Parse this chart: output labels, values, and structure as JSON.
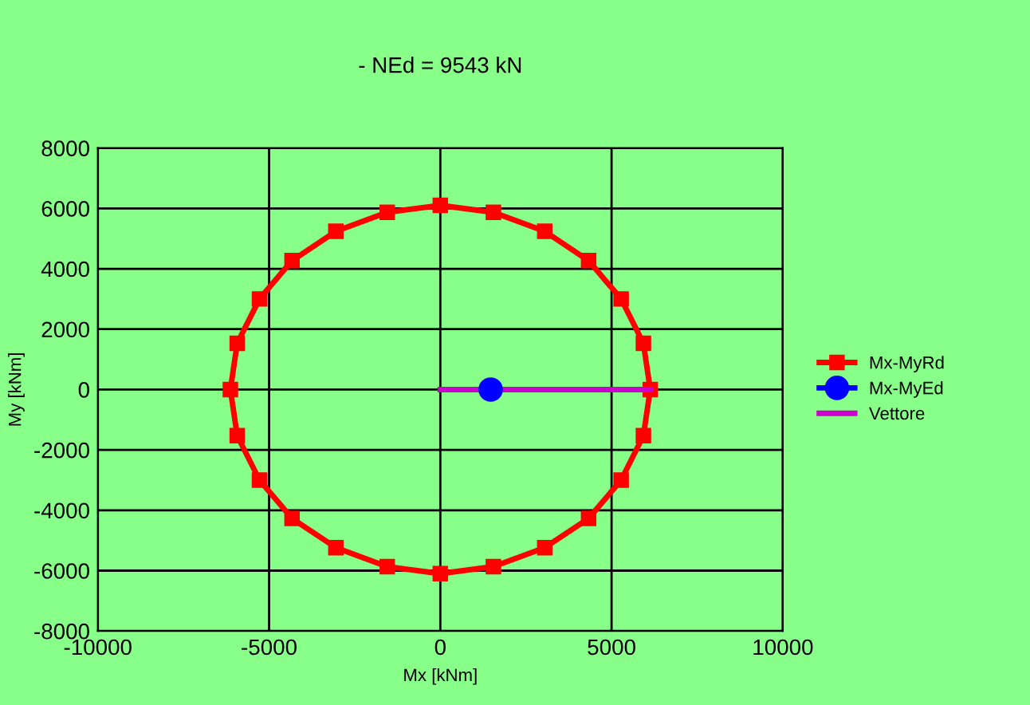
{
  "chart_data": {
    "type": "line",
    "title": "- NEd = 9543 kN",
    "xlabel": "Mx [kNm]",
    "ylabel": "My [kNm]",
    "xlim": [
      -10000,
      10000
    ],
    "xticks": [
      -10000,
      -5000,
      0,
      5000,
      10000
    ],
    "ylim": [
      -8000,
      8000
    ],
    "yticks": [
      -8000,
      -6000,
      -4000,
      -2000,
      0,
      2000,
      4000,
      6000,
      8000
    ],
    "grid": true,
    "legend": "right",
    "line_style": "solid",
    "series": [
      {
        "name": "Mx-MyRd",
        "color": "#ff0000",
        "marker": "square",
        "x": [
          0,
          1550,
          3050,
          4330,
          5280,
          5930,
          6130,
          5930,
          5280,
          4330,
          3050,
          1550,
          0,
          -1550,
          -3050,
          -4330,
          -5280,
          -5930,
          -6130,
          -5930,
          -5280,
          -4330,
          -3050,
          -1550
        ],
        "values": [
          6100,
          5870,
          5240,
          4270,
          3000,
          1530,
          0,
          -1530,
          -3000,
          -4270,
          -5240,
          -5870,
          -6100,
          -5870,
          -5240,
          -4270,
          -3000,
          -1530,
          0,
          1530,
          3000,
          4270,
          5240,
          5870
        ]
      },
      {
        "color": "#ff0000",
        "marker": "none",
        "x": [
          -1550,
          0
        ],
        "values": [
          5870,
          6100
        ]
      },
      {
        "name": "Mx-MyEd",
        "color": "#0000ff",
        "marker": "circle",
        "x": [
          1470
        ],
        "values": [
          0
        ]
      },
      {
        "name": "Vettore",
        "color": "#cc00cc",
        "marker": "none",
        "x": [
          0,
          6130
        ],
        "values": [
          0,
          0
        ]
      }
    ]
  }
}
